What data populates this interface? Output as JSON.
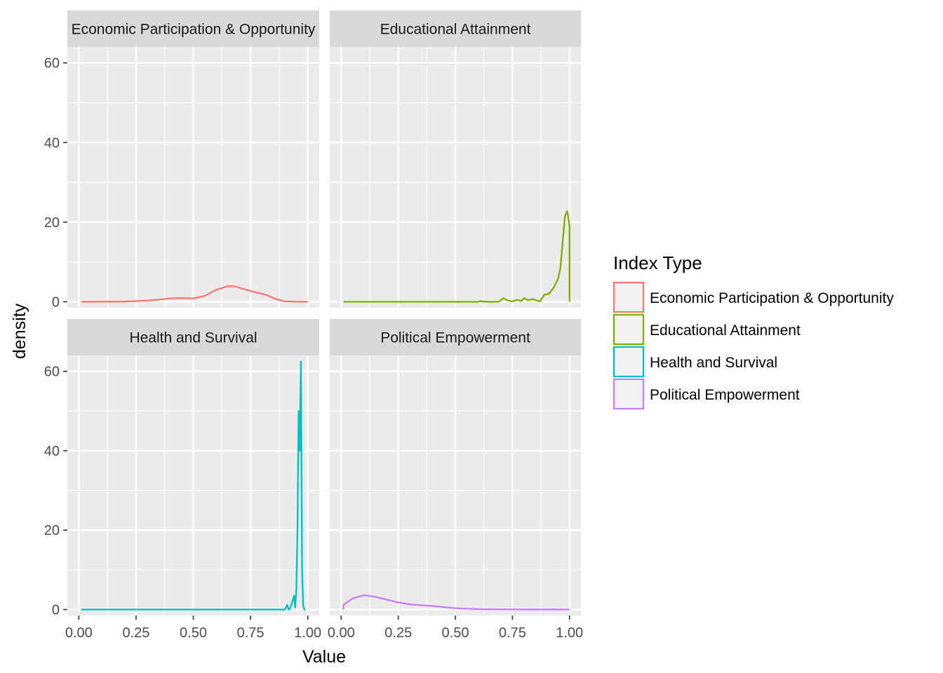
{
  "chart_data": {
    "type": "line",
    "facet_layout": "2x2 grid, shared axes",
    "xlabel": "Value",
    "ylabel": "density",
    "xlim": [
      0,
      1
    ],
    "ylim": [
      -1.5,
      64
    ],
    "x_ticks": [
      "0.00",
      "0.25",
      "0.50",
      "0.75",
      "1.00"
    ],
    "y_ticks": [
      "0",
      "20",
      "40",
      "60"
    ],
    "grid": true,
    "legend": {
      "title": "Index Type",
      "placement": "right",
      "entries": [
        "Economic Participation & Opportunity",
        "Educational Attainment",
        "Health and Survival",
        "Political Empowerment"
      ]
    },
    "panels": [
      {
        "strip_label": "Economic Participation & Opportunity",
        "color": "#F8766D",
        "series": [
          {
            "name": "Economic Participation & Opportunity",
            "x": [
              0.01,
              0.2,
              0.3,
              0.35,
              0.4,
              0.45,
              0.5,
              0.55,
              0.6,
              0.65,
              0.68,
              0.72,
              0.77,
              0.82,
              0.86,
              0.9,
              0.95,
              1.0
            ],
            "y": [
              0,
              0.05,
              0.3,
              0.55,
              0.85,
              0.95,
              0.85,
              1.5,
              3.0,
              3.9,
              3.9,
              3.2,
              2.4,
              1.7,
              0.7,
              0.1,
              0.02,
              0
            ]
          }
        ]
      },
      {
        "strip_label": "Educational Attainment",
        "color": "#7CAE00",
        "series": [
          {
            "name": "Educational Attainment",
            "x": [
              0.01,
              0.6,
              0.61,
              0.62,
              0.65,
              0.69,
              0.71,
              0.73,
              0.75,
              0.77,
              0.79,
              0.8,
              0.82,
              0.84,
              0.86,
              0.87,
              0.89,
              0.91,
              0.93,
              0.95,
              0.96,
              0.97,
              0.98,
              0.99,
              1.0,
              1.0
            ],
            "y": [
              0,
              0,
              0.2,
              0.05,
              0,
              0,
              0.9,
              0.3,
              0.1,
              0.5,
              0.2,
              0.9,
              0.4,
              0.7,
              0.2,
              0.1,
              1.8,
              2.0,
              3.5,
              5.8,
              8.5,
              15.0,
              21.5,
              22.8,
              19.0,
              0
            ]
          }
        ]
      },
      {
        "strip_label": "Health and Survival",
        "color": "#00BFC4",
        "series": [
          {
            "name": "Health and Survival",
            "x": [
              0.01,
              0.9,
              0.91,
              0.915,
              0.92,
              0.93,
              0.94,
              0.945,
              0.95,
              0.955,
              0.96,
              0.965,
              0.97,
              0.975,
              0.98,
              0.985,
              0.99
            ],
            "y": [
              0,
              0,
              1.2,
              0.1,
              0,
              1.5,
              3.5,
              0.5,
              5.0,
              20.0,
              50.0,
              40.0,
              62.5,
              10.0,
              1.0,
              0,
              0
            ]
          }
        ]
      },
      {
        "strip_label": "Political Empowerment",
        "color": "#C77CFF",
        "series": [
          {
            "name": "Political Empowerment",
            "x": [
              0.01,
              0.01,
              0.05,
              0.1,
              0.15,
              0.2,
              0.25,
              0.3,
              0.35,
              0.4,
              0.45,
              0.5,
              0.55,
              0.6,
              0.7,
              0.8,
              0.9,
              1.0
            ],
            "y": [
              0,
              1.2,
              2.8,
              3.6,
              3.2,
              2.5,
              1.8,
              1.3,
              1.1,
              0.9,
              0.6,
              0.35,
              0.2,
              0.1,
              0.05,
              0.02,
              0.01,
              0
            ]
          }
        ]
      }
    ]
  }
}
